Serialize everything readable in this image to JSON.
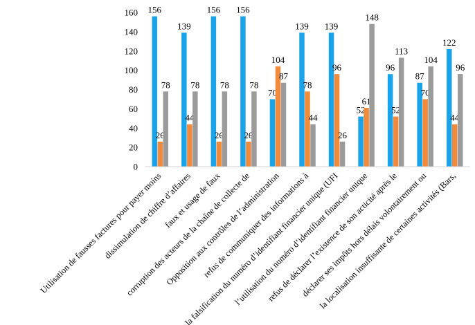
{
  "chart_data": {
    "type": "bar",
    "title": "",
    "xlabel": "",
    "ylabel": "",
    "ylim": [
      0,
      160
    ],
    "yticks": [
      0,
      20,
      40,
      60,
      80,
      100,
      120,
      140,
      160
    ],
    "grid": false,
    "legend": "none",
    "categories": [
      "Utilisation de fausses factures pour payer moins",
      "dissimulation de chiffre d’affaires",
      "faux et usage de faux",
      "corruption des acteurs de la chaîne de collecte de",
      "Opposition aux contrôles de l’administration",
      "refus de communiquer des informations à",
      "la falsification du numéro d’identifiant financier unique (UFI",
      "l’utilisation du numéro d’identifiant financier unique",
      "refus de déclarer l’existence de son acticité après le",
      "déclarer ses impôts hors délais volontairement ou",
      "la localisation insuffisante de certaines activités (Bars,"
    ],
    "series": [
      {
        "color": "#1aa3e8",
        "values": [
          156,
          139,
          156,
          156,
          70,
          139,
          139,
          52,
          96,
          87,
          122
        ]
      },
      {
        "color": "#f08a3c",
        "values": [
          26,
          44,
          26,
          26,
          104,
          78,
          96,
          61,
          52,
          70,
          44
        ]
      },
      {
        "color": "#9b9b9b",
        "values": [
          78,
          78,
          78,
          78,
          87,
          44,
          26,
          148,
          113,
          104,
          96
        ]
      }
    ]
  }
}
